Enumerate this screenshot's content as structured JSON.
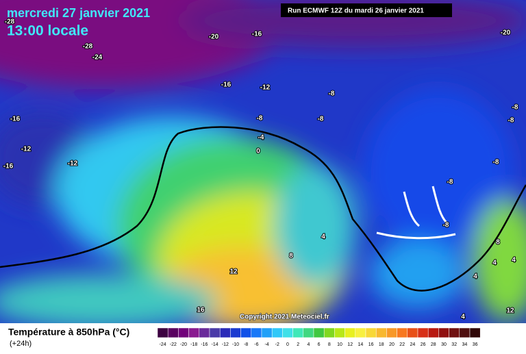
{
  "header": {
    "date": "mercredi 27 janvier 2021",
    "time": "13:00 locale",
    "run": "Run ECMWF 12Z du mardi 26 janvier 2021"
  },
  "map": {
    "contour_labels": [
      -28,
      -20,
      -16,
      -20,
      -28,
      -24,
      -16,
      -12,
      -8,
      -16,
      -8,
      -8,
      -8,
      -8,
      -4,
      0,
      -12,
      -16,
      -12,
      -8,
      -8,
      -8,
      4,
      8,
      12,
      16,
      8,
      4,
      4,
      4,
      12,
      4
    ],
    "copyright": "Copyright 2021 Meteociel.fr"
  },
  "legend": {
    "title": "Température à 850hPa (°C)",
    "subtitle": "(+24h)",
    "ticks": [
      -24,
      -22,
      -20,
      -18,
      -16,
      -14,
      -12,
      -10,
      -8,
      -6,
      -4,
      -2,
      0,
      2,
      4,
      6,
      8,
      10,
      12,
      14,
      16,
      18,
      20,
      22,
      24,
      26,
      28,
      30,
      32,
      34,
      36
    ],
    "colors": [
      "#3c0040",
      "#5a0060",
      "#72007a",
      "#8a1a90",
      "#6a2a9a",
      "#4a3aa8",
      "#2a2ab8",
      "#1a3ad0",
      "#1050e8",
      "#1878f8",
      "#20a0f8",
      "#30c8f8",
      "#40e0e8",
      "#40e8b8",
      "#40d880",
      "#40c840",
      "#80d820",
      "#b8e818",
      "#e8f020",
      "#f8f040",
      "#f8d838",
      "#f8b830",
      "#f89828",
      "#f87820",
      "#e85018",
      "#d83018",
      "#b81810",
      "#901010",
      "#701010",
      "#501010",
      "#300808"
    ]
  }
}
